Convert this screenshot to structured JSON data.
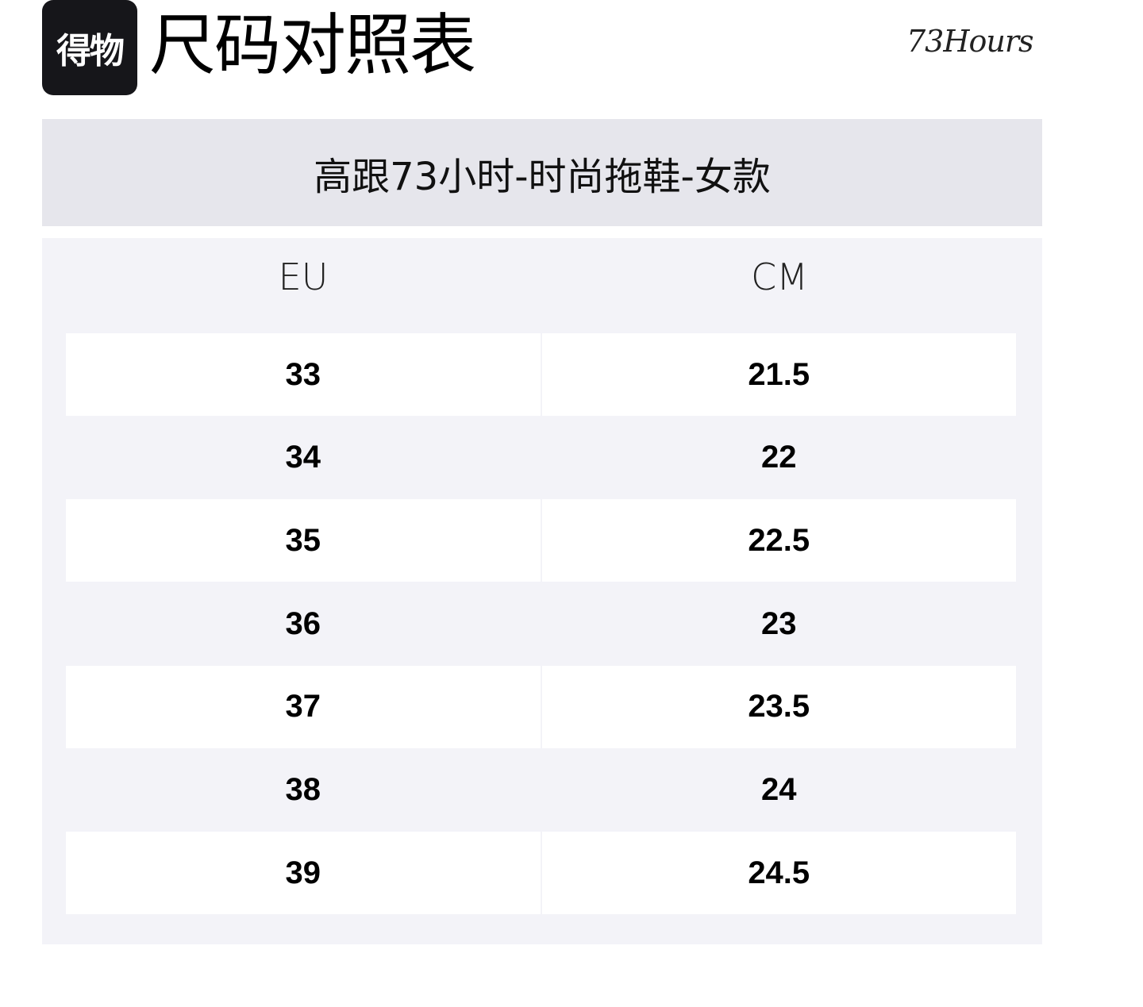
{
  "header": {
    "logo_text": "得物",
    "title": "尺码对照表",
    "brand": "73Hours"
  },
  "subtitle": "高跟73小时-时尚拖鞋-女款",
  "table": {
    "columns": [
      "EU",
      "CM"
    ],
    "rows": [
      [
        "33",
        "21.5"
      ],
      [
        "34",
        "22"
      ],
      [
        "35",
        "22.5"
      ],
      [
        "36",
        "23"
      ],
      [
        "37",
        "23.5"
      ],
      [
        "38",
        "24"
      ],
      [
        "39",
        "24.5"
      ]
    ]
  }
}
